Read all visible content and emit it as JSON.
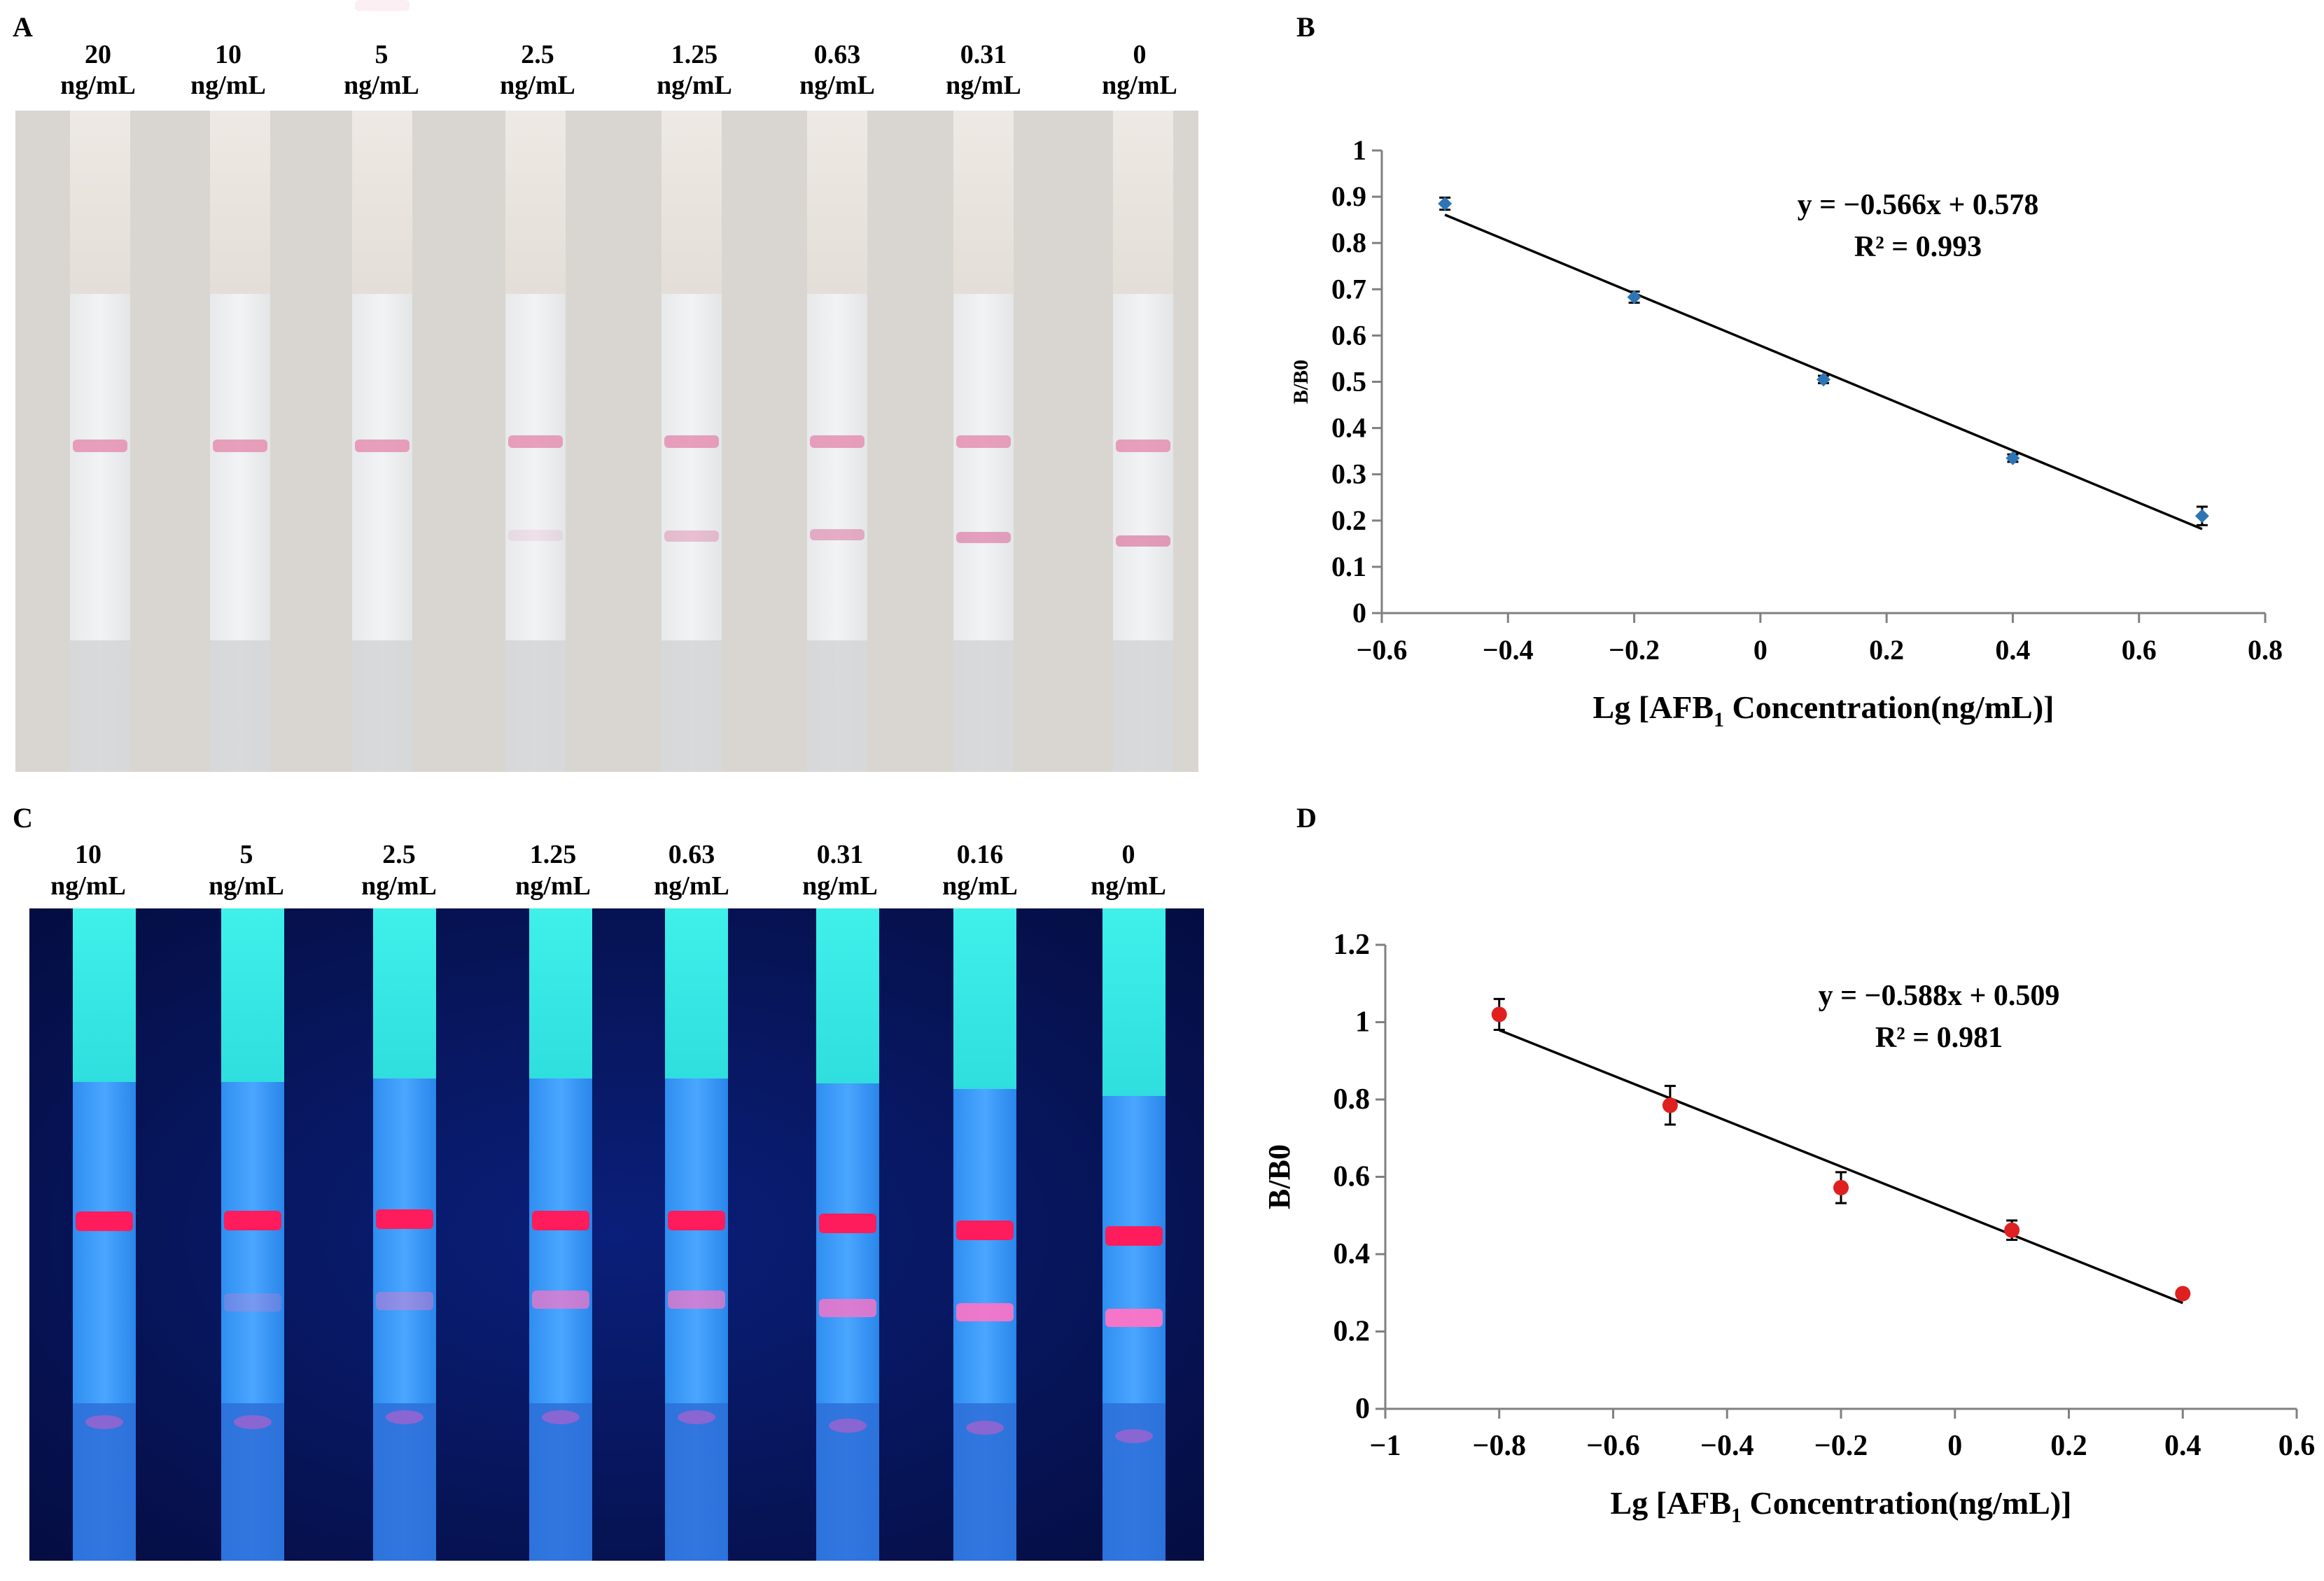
{
  "panels": {
    "A": {
      "letter": "A",
      "unit": "ng/mL",
      "concentrations": [
        "20",
        "10",
        "5",
        "2.5",
        "1.25",
        "0.63",
        "0.31",
        "0"
      ],
      "test_line_intensity": [
        0,
        0,
        0.12,
        0.15,
        0.45,
        0.6,
        0.7,
        0.75
      ]
    },
    "B": {
      "letter": "B",
      "chart_data": {
        "type": "scatter",
        "title": "",
        "xlabel_main": "Lg [AFB",
        "xlabel_sub": "1",
        "xlabel_tail": " Concentration(ng/mL)]",
        "ylabel": "B/B0",
        "xlim": [
          -0.6,
          0.8
        ],
        "ylim": [
          0,
          1
        ],
        "xticks": [
          -0.6,
          -0.4,
          -0.2,
          0,
          0.2,
          0.4,
          0.6,
          0.8
        ],
        "xtick_labels": [
          "−0.6",
          "−0.4",
          "−0.2",
          "0",
          "0.2",
          "0.4",
          "0.6",
          "0.8"
        ],
        "yticks": [
          0,
          0.1,
          0.2,
          0.3,
          0.4,
          0.5,
          0.6,
          0.7,
          0.8,
          0.9,
          1
        ],
        "ytick_labels": [
          "0",
          "0.1",
          "0.2",
          "0.3",
          "0.4",
          "0.5",
          "0.6",
          "0.7",
          "0.8",
          "0.9",
          "1"
        ],
        "series": [
          {
            "name": "B/B0",
            "color": "#2e75b6",
            "x": [
              -0.5,
              -0.2,
              0.1,
              0.4,
              0.7
            ],
            "y": [
              0.885,
              0.683,
              0.505,
              0.335,
              0.21
            ],
            "err": [
              0.013,
              0.012,
              0.008,
              0.008,
              0.02
            ]
          }
        ],
        "trendline": {
          "slope": -0.566,
          "intercept": 0.578,
          "x_range": [
            -0.5,
            0.7
          ]
        },
        "equation": "y = −0.566x + 0.578",
        "r2": "R² = 0.993"
      }
    },
    "C": {
      "letter": "C",
      "unit": "ng/mL",
      "concentrations": [
        "10",
        "5",
        "2.5",
        "1.25",
        "0.63",
        "0.31",
        "0.16",
        "0"
      ],
      "test_line_intensity": [
        0,
        0.25,
        0.4,
        0.7,
        0.7,
        0.8,
        0.9,
        0.95
      ]
    },
    "D": {
      "letter": "D",
      "chart_data": {
        "type": "scatter",
        "title": "",
        "xlabel_main": "Lg [AFB",
        "xlabel_sub": "1",
        "xlabel_tail": " Concentration(ng/mL)]",
        "ylabel": "B/B0",
        "xlim": [
          -1,
          0.6
        ],
        "ylim": [
          0,
          1.2
        ],
        "xticks": [
          -1,
          -0.8,
          -0.6,
          -0.4,
          -0.2,
          0,
          0.2,
          0.4,
          0.6
        ],
        "xtick_labels": [
          "−1",
          "−0.8",
          "−0.6",
          "−0.4",
          "−0.2",
          "0",
          "0.2",
          "0.4",
          "0.6"
        ],
        "yticks": [
          0,
          0.2,
          0.4,
          0.6,
          0.8,
          1,
          1.2
        ],
        "ytick_labels": [
          "0",
          "0.2",
          "0.4",
          "0.6",
          "0.8",
          "1",
          "1.2"
        ],
        "series": [
          {
            "name": "B/B0",
            "color": "#e02020",
            "x": [
              -0.8,
              -0.5,
              -0.2,
              0.1,
              0.4
            ],
            "y": [
              1.02,
              0.785,
              0.572,
              0.462,
              0.298
            ],
            "err": [
              0.04,
              0.05,
              0.04,
              0.025,
              0.01
            ]
          }
        ],
        "trendline": {
          "slope": -0.588,
          "intercept": 0.509,
          "x_range": [
            -0.8,
            0.4
          ]
        },
        "equation": "y = −0.588x + 0.509",
        "r2": "R² = 0.981"
      }
    }
  }
}
